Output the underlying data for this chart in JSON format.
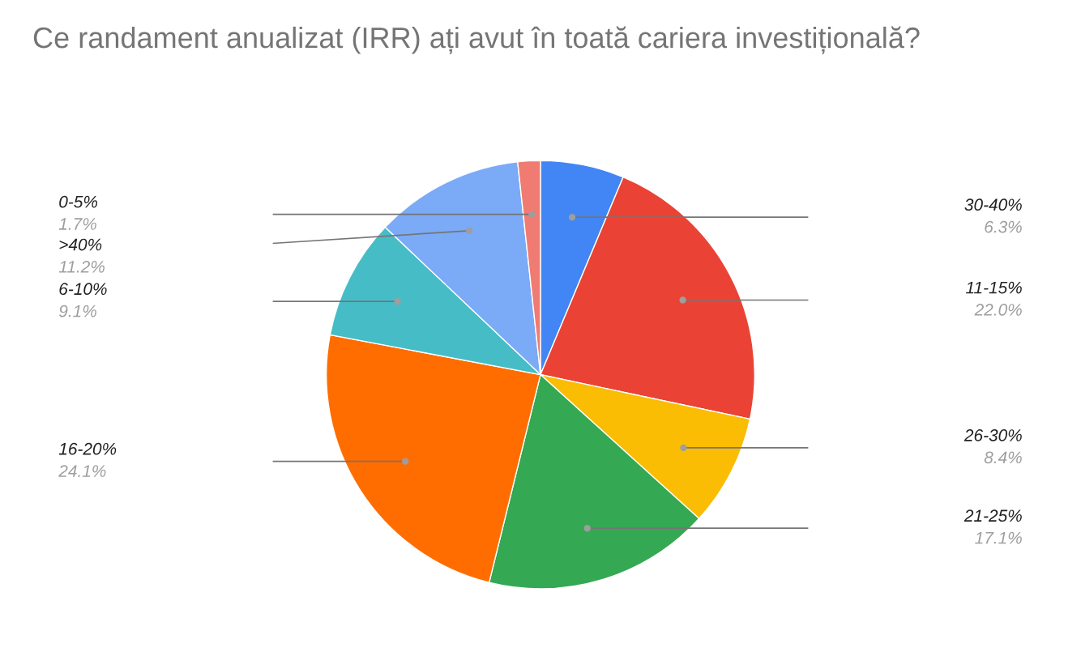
{
  "chart_data": {
    "type": "pie",
    "title": "Ce randament anualizat (IRR) ați avut în toată cariera investițională?",
    "categories": [
      "30-40%",
      "11-15%",
      "26-30%",
      "21-25%",
      "16-20%",
      "6-10%",
      ">40%",
      "0-5%"
    ],
    "values": [
      6.3,
      22.0,
      8.4,
      17.1,
      24.1,
      9.1,
      11.2,
      1.7
    ],
    "value_labels": [
      "6.3%",
      "22.0%",
      "8.4%",
      "17.1%",
      "24.1%",
      "9.1%",
      "11.2%",
      "1.7%"
    ],
    "colors": [
      "#4285f4",
      "#ea4335",
      "#fbbc04",
      "#34a853",
      "#ff6d01",
      "#46bdc6",
      "#7baaf7",
      "#f07b72"
    ],
    "legend": false
  }
}
